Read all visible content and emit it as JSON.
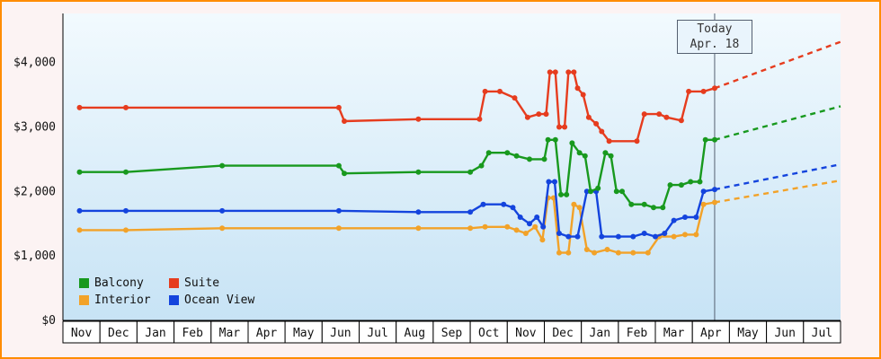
{
  "today_marker": {
    "line1": "Today",
    "line2": "Apr. 18"
  },
  "legend": [
    {
      "label": "Balcony",
      "color": "#18991e"
    },
    {
      "label": "Suite",
      "color": "#e63c1e"
    },
    {
      "label": "Interior",
      "color": "#f2a229"
    },
    {
      "label": "Ocean View",
      "color": "#1444dd"
    }
  ],
  "chart_data": {
    "type": "line",
    "title": "",
    "xlabel": "",
    "ylabel": "",
    "grid": false,
    "legend_position": "bottom-left",
    "ylim": [
      0,
      4760
    ],
    "y_ticks": [
      {
        "value": 0,
        "label": "$0"
      },
      {
        "value": 1000,
        "label": "$1,000"
      },
      {
        "value": 2000,
        "label": "$2,000"
      },
      {
        "value": 3000,
        "label": "$3,000"
      },
      {
        "value": 4000,
        "label": "$4,000"
      }
    ],
    "x_months": [
      "Nov",
      "Dec",
      "Jan",
      "Feb",
      "Mar",
      "Apr",
      "May",
      "Jun",
      "Jul",
      "Aug",
      "Sep",
      "Oct",
      "Nov",
      "Dec",
      "Jan",
      "Feb",
      "Mar",
      "Apr",
      "May",
      "Jun",
      "Jul"
    ],
    "today": {
      "x": 17.6,
      "label": "Apr. 18"
    },
    "series": [
      {
        "name": "Interior",
        "color": "#f2a229",
        "points": [
          [
            0.45,
            1400
          ],
          [
            1.7,
            1400
          ],
          [
            4.3,
            1430
          ],
          [
            7.45,
            1430
          ],
          [
            9.6,
            1430
          ],
          [
            11.0,
            1430
          ],
          [
            11.4,
            1450
          ],
          [
            12.0,
            1450
          ],
          [
            12.25,
            1400
          ],
          [
            12.5,
            1350
          ],
          [
            12.75,
            1450
          ],
          [
            12.95,
            1250
          ],
          [
            13.1,
            1900
          ],
          [
            13.25,
            1900
          ],
          [
            13.4,
            1050
          ],
          [
            13.65,
            1050
          ],
          [
            13.8,
            1800
          ],
          [
            13.95,
            1750
          ],
          [
            14.15,
            1100
          ],
          [
            14.35,
            1050
          ],
          [
            14.7,
            1100
          ],
          [
            15.0,
            1050
          ],
          [
            15.4,
            1050
          ],
          [
            15.8,
            1050
          ],
          [
            16.1,
            1300
          ],
          [
            16.5,
            1300
          ],
          [
            16.8,
            1330
          ],
          [
            17.1,
            1330
          ],
          [
            17.3,
            1800
          ],
          [
            17.6,
            1830
          ]
        ],
        "projection_end": [
          21,
          2170
        ]
      },
      {
        "name": "Ocean View",
        "color": "#1444dd",
        "points": [
          [
            0.45,
            1700
          ],
          [
            1.7,
            1700
          ],
          [
            4.3,
            1700
          ],
          [
            7.45,
            1700
          ],
          [
            9.6,
            1680
          ],
          [
            11.0,
            1680
          ],
          [
            11.35,
            1800
          ],
          [
            11.9,
            1800
          ],
          [
            12.15,
            1750
          ],
          [
            12.35,
            1600
          ],
          [
            12.6,
            1500
          ],
          [
            12.8,
            1600
          ],
          [
            12.97,
            1450
          ],
          [
            13.12,
            2150
          ],
          [
            13.28,
            2150
          ],
          [
            13.4,
            1350
          ],
          [
            13.65,
            1300
          ],
          [
            13.9,
            1300
          ],
          [
            14.15,
            2000
          ],
          [
            14.4,
            2000
          ],
          [
            14.55,
            1300
          ],
          [
            15.0,
            1300
          ],
          [
            15.4,
            1300
          ],
          [
            15.7,
            1350
          ],
          [
            16.0,
            1300
          ],
          [
            16.25,
            1350
          ],
          [
            16.5,
            1550
          ],
          [
            16.8,
            1600
          ],
          [
            17.1,
            1600
          ],
          [
            17.3,
            2000
          ],
          [
            17.6,
            2030
          ]
        ],
        "projection_end": [
          21,
          2420
        ]
      },
      {
        "name": "Balcony",
        "color": "#18991e",
        "points": [
          [
            0.45,
            2300
          ],
          [
            1.7,
            2300
          ],
          [
            4.3,
            2400
          ],
          [
            7.45,
            2400
          ],
          [
            7.6,
            2280
          ],
          [
            9.6,
            2300
          ],
          [
            11.0,
            2300
          ],
          [
            11.3,
            2400
          ],
          [
            11.5,
            2600
          ],
          [
            12.0,
            2600
          ],
          [
            12.25,
            2550
          ],
          [
            12.6,
            2500
          ],
          [
            13.0,
            2500
          ],
          [
            13.1,
            2800
          ],
          [
            13.3,
            2800
          ],
          [
            13.45,
            1950
          ],
          [
            13.6,
            1950
          ],
          [
            13.75,
            2750
          ],
          [
            13.95,
            2600
          ],
          [
            14.1,
            2550
          ],
          [
            14.25,
            2000
          ],
          [
            14.45,
            2050
          ],
          [
            14.65,
            2600
          ],
          [
            14.8,
            2550
          ],
          [
            14.95,
            2000
          ],
          [
            15.1,
            2000
          ],
          [
            15.35,
            1800
          ],
          [
            15.7,
            1800
          ],
          [
            15.95,
            1750
          ],
          [
            16.2,
            1750
          ],
          [
            16.4,
            2100
          ],
          [
            16.7,
            2100
          ],
          [
            16.95,
            2150
          ],
          [
            17.2,
            2150
          ],
          [
            17.35,
            2800
          ],
          [
            17.6,
            2800
          ]
        ],
        "projection_end": [
          21,
          3320
        ]
      },
      {
        "name": "Suite",
        "color": "#e63c1e",
        "points": [
          [
            0.45,
            3300
          ],
          [
            1.7,
            3300
          ],
          [
            7.45,
            3300
          ],
          [
            7.6,
            3090
          ],
          [
            9.6,
            3120
          ],
          [
            11.25,
            3120
          ],
          [
            11.4,
            3550
          ],
          [
            11.8,
            3550
          ],
          [
            12.2,
            3450
          ],
          [
            12.55,
            3150
          ],
          [
            12.85,
            3200
          ],
          [
            13.05,
            3200
          ],
          [
            13.15,
            3850
          ],
          [
            13.3,
            3850
          ],
          [
            13.4,
            3000
          ],
          [
            13.55,
            3000
          ],
          [
            13.65,
            3850
          ],
          [
            13.8,
            3850
          ],
          [
            13.9,
            3600
          ],
          [
            14.05,
            3500
          ],
          [
            14.2,
            3150
          ],
          [
            14.4,
            3050
          ],
          [
            14.55,
            2930
          ],
          [
            14.75,
            2780
          ],
          [
            15.5,
            2780
          ],
          [
            15.7,
            3200
          ],
          [
            16.1,
            3200
          ],
          [
            16.3,
            3150
          ],
          [
            16.7,
            3100
          ],
          [
            16.9,
            3550
          ],
          [
            17.3,
            3550
          ],
          [
            17.6,
            3600
          ]
        ],
        "projection_end": [
          21,
          4320
        ]
      }
    ]
  }
}
